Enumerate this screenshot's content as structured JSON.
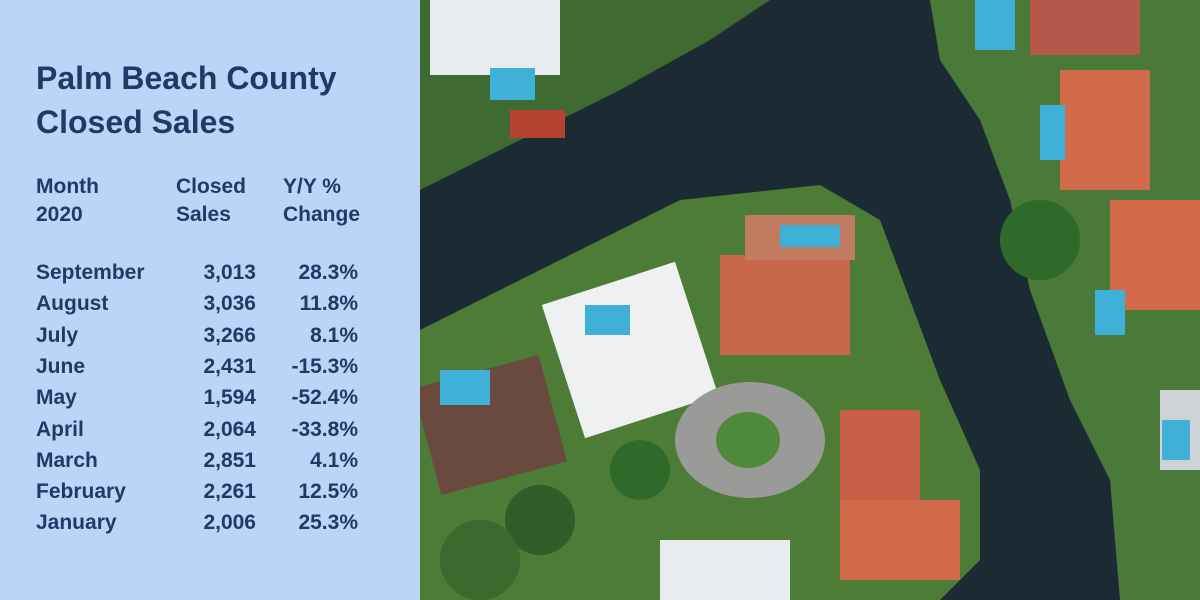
{
  "header": {
    "title": [
      "Palm Beach County",
      "Closed Sales"
    ]
  },
  "table": {
    "columns": [
      [
        "Month",
        "2020"
      ],
      [
        "Closed",
        "Sales"
      ],
      [
        "Y/Y %",
        "Change"
      ]
    ],
    "rows": [
      [
        "September",
        "3,013",
        "28.3%"
      ],
      [
        "August",
        "3,036",
        "11.8%"
      ],
      [
        "July",
        "3,266",
        "8.1%"
      ],
      [
        "June",
        "2,431",
        "-15.3%"
      ],
      [
        "May",
        "1,594",
        "-52.4%"
      ],
      [
        "April",
        "2,064",
        "-33.8%"
      ],
      [
        "March",
        "2,851",
        "4.1%"
      ],
      [
        "February",
        "2,261",
        "12.5%"
      ],
      [
        "January",
        "2,006",
        "25.3%"
      ]
    ]
  }
}
